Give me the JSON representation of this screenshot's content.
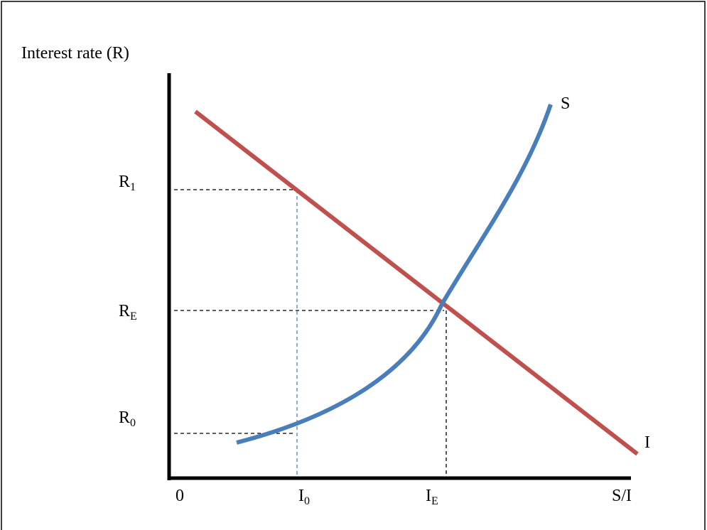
{
  "axis_title": "Interest rate (R)",
  "curves": {
    "supply": "S",
    "investment": "I"
  },
  "y_labels": [
    {
      "base": "R",
      "sub": "1"
    },
    {
      "base": "R",
      "sub": "E"
    },
    {
      "base": "R",
      "sub": "0"
    }
  ],
  "x_labels": {
    "origin": "0",
    "i0": {
      "base": "I",
      "sub": "0"
    },
    "ie": {
      "base": "I",
      "sub": "E"
    },
    "end": "S/I"
  }
}
